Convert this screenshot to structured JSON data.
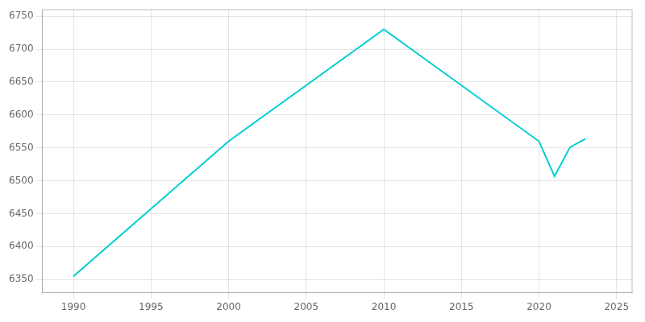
{
  "chart_data": {
    "type": "line",
    "x": [
      1990,
      2000,
      2010,
      2020,
      2021,
      2022,
      2023
    ],
    "values": [
      6355,
      6560,
      6730,
      6560,
      6507,
      6551,
      6564
    ],
    "color": "#00CED1",
    "xlim": [
      1988,
      2026
    ],
    "ylim": [
      6330,
      6760
    ],
    "xticks": [
      1990,
      1995,
      2000,
      2005,
      2010,
      2015,
      2020,
      2025
    ],
    "yticks": [
      6350,
      6400,
      6450,
      6500,
      6550,
      6600,
      6650,
      6700,
      6750
    ],
    "grid": true
  }
}
